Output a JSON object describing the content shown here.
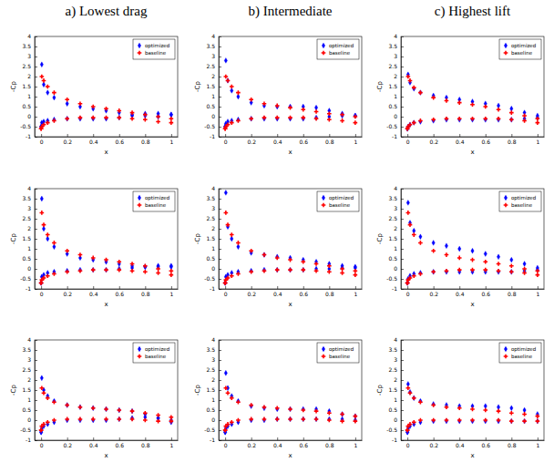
{
  "chart_data": [
    {
      "type": "scatter",
      "title": "a) Lowest drag",
      "x_label": "x",
      "y_label": "-Cp",
      "x": [
        1,
        0.9,
        0.8,
        0.7,
        0.6,
        0.5,
        0.4,
        0.3,
        0.2,
        0.1,
        0.05,
        0.02,
        0.005,
        0,
        0,
        0.005,
        0.02,
        0.05,
        0.1,
        0.2,
        0.3,
        0.4,
        0.5,
        0.6,
        0.7,
        0.8,
        0.9,
        1
      ],
      "series": [
        {
          "name": "optimized",
          "color": "#0000ff",
          "marker": "diamond",
          "values": [
            0.1,
            0.0,
            0.05,
            0.1,
            0.2,
            0.3,
            0.4,
            0.5,
            0.65,
            0.95,
            1.2,
            1.6,
            2.6,
            -0.5,
            -0.5,
            -0.3,
            -0.25,
            -0.2,
            -0.15,
            -0.1,
            -0.1,
            -0.1,
            -0.1,
            -0.05,
            0.05,
            0.15,
            0.15,
            0.1
          ]
        },
        {
          "name": "baseline",
          "color": "#ff0000",
          "marker": "plus",
          "values": [
            -0.1,
            0.0,
            0.1,
            0.2,
            0.3,
            0.4,
            0.5,
            0.65,
            0.85,
            1.2,
            1.5,
            1.8,
            2.0,
            -0.6,
            -0.6,
            -0.5,
            -0.4,
            -0.3,
            -0.2,
            -0.1,
            -0.05,
            -0.05,
            -0.05,
            -0.05,
            -0.1,
            -0.15,
            -0.25,
            -0.3
          ]
        }
      ],
      "xlim": [
        -0.05,
        1.05
      ],
      "xticks": [
        0,
        0.2,
        0.4,
        0.6,
        0.8,
        1
      ],
      "ylim": [
        -1,
        4
      ],
      "yticks": [
        -1,
        -0.5,
        0,
        0.5,
        1,
        1.5,
        2,
        2.5,
        3,
        3.5,
        4
      ],
      "legend": "upper right"
    },
    {
      "type": "scatter",
      "title": "b) Intermediate",
      "x_label": "x",
      "y_label": "-Cp",
      "x": [
        1,
        0.9,
        0.8,
        0.7,
        0.6,
        0.5,
        0.4,
        0.3,
        0.2,
        0.1,
        0.05,
        0.02,
        0.005,
        0,
        0,
        0.005,
        0.02,
        0.05,
        0.1,
        0.2,
        0.3,
        0.4,
        0.5,
        0.6,
        0.7,
        0.8,
        0.9,
        1
      ],
      "series": [
        {
          "name": "optimized",
          "color": "#0000ff",
          "marker": "diamond",
          "values": [
            0.05,
            0.15,
            0.3,
            0.45,
            0.5,
            0.5,
            0.5,
            0.55,
            0.7,
            1.0,
            1.3,
            1.8,
            2.8,
            -0.5,
            -0.5,
            -0.35,
            -0.25,
            -0.2,
            -0.15,
            -0.1,
            -0.1,
            -0.1,
            -0.1,
            -0.1,
            -0.05,
            0.0,
            0.05,
            0.05
          ]
        },
        {
          "name": "baseline",
          "color": "#ff0000",
          "marker": "plus",
          "values": [
            0.0,
            0.1,
            0.15,
            0.25,
            0.35,
            0.45,
            0.55,
            0.65,
            0.85,
            1.2,
            1.5,
            1.8,
            2.0,
            -0.6,
            -0.6,
            -0.5,
            -0.4,
            -0.3,
            -0.2,
            -0.1,
            -0.05,
            -0.05,
            -0.05,
            -0.05,
            -0.1,
            -0.15,
            -0.2,
            -0.3
          ]
        }
      ],
      "xlim": [
        -0.05,
        1.05
      ],
      "xticks": [
        0,
        0.2,
        0.4,
        0.6,
        0.8,
        1
      ],
      "ylim": [
        -1,
        4
      ],
      "yticks": [
        -1,
        -0.5,
        0,
        0.5,
        1,
        1.5,
        2,
        2.5,
        3,
        3.5,
        4
      ],
      "legend": "upper right"
    },
    {
      "type": "scatter",
      "title": "c) Highest lift",
      "x_label": "x",
      "y_label": "-Cp",
      "x": [
        1,
        0.9,
        0.8,
        0.7,
        0.6,
        0.5,
        0.4,
        0.3,
        0.2,
        0.1,
        0.05,
        0.02,
        0.005,
        0,
        0,
        0.005,
        0.02,
        0.05,
        0.1,
        0.2,
        0.3,
        0.4,
        0.5,
        0.6,
        0.7,
        0.8,
        0.9,
        1
      ],
      "series": [
        {
          "name": "optimized",
          "color": "#0000ff",
          "marker": "diamond",
          "values": [
            0.05,
            0.2,
            0.4,
            0.55,
            0.65,
            0.75,
            0.85,
            0.95,
            1.05,
            1.2,
            1.4,
            1.7,
            2.1,
            -0.6,
            -0.6,
            -0.5,
            -0.4,
            -0.3,
            -0.25,
            -0.2,
            -0.15,
            -0.15,
            -0.15,
            -0.15,
            -0.15,
            -0.15,
            -0.1,
            -0.05
          ]
        },
        {
          "name": "baseline",
          "color": "#ff0000",
          "marker": "plus",
          "values": [
            -0.1,
            0.05,
            0.2,
            0.35,
            0.5,
            0.6,
            0.7,
            0.8,
            0.95,
            1.2,
            1.45,
            1.8,
            2.0,
            -0.6,
            -0.6,
            -0.5,
            -0.4,
            -0.3,
            -0.2,
            -0.15,
            -0.1,
            -0.1,
            -0.1,
            -0.1,
            -0.1,
            -0.15,
            -0.2,
            -0.3
          ]
        }
      ],
      "xlim": [
        -0.05,
        1.05
      ],
      "xticks": [
        0,
        0.2,
        0.4,
        0.6,
        0.8,
        1
      ],
      "ylim": [
        -1,
        4
      ],
      "yticks": [
        -1,
        -0.5,
        0,
        0.5,
        1,
        1.5,
        2,
        2.5,
        3,
        3.5,
        4
      ],
      "legend": "upper right"
    },
    {
      "type": "scatter",
      "x_label": "x",
      "y_label": "-Cp",
      "x": [
        1,
        0.9,
        0.8,
        0.7,
        0.6,
        0.5,
        0.4,
        0.3,
        0.2,
        0.1,
        0.05,
        0.02,
        0.005,
        0,
        0,
        0.005,
        0.02,
        0.05,
        0.1,
        0.2,
        0.3,
        0.4,
        0.5,
        0.6,
        0.7,
        0.8,
        0.9,
        1
      ],
      "series": [
        {
          "name": "optimized",
          "color": "#0000ff",
          "marker": "diamond",
          "values": [
            0.15,
            0.1,
            0.1,
            0.15,
            0.25,
            0.35,
            0.45,
            0.55,
            0.75,
            1.1,
            1.5,
            2.0,
            3.5,
            -0.7,
            -0.7,
            -0.4,
            -0.3,
            -0.2,
            -0.15,
            -0.1,
            -0.05,
            -0.05,
            -0.05,
            0.0,
            0.05,
            0.1,
            0.15,
            0.1
          ]
        },
        {
          "name": "baseline",
          "color": "#ff0000",
          "marker": "plus",
          "values": [
            -0.1,
            0.0,
            0.15,
            0.25,
            0.35,
            0.45,
            0.55,
            0.7,
            0.9,
            1.3,
            1.7,
            2.2,
            2.8,
            -0.7,
            -0.7,
            -0.55,
            -0.45,
            -0.35,
            -0.25,
            -0.15,
            -0.1,
            -0.05,
            -0.05,
            -0.05,
            -0.1,
            -0.15,
            -0.2,
            -0.3
          ]
        }
      ],
      "xlim": [
        -0.05,
        1.05
      ],
      "xticks": [
        0,
        0.2,
        0.4,
        0.6,
        0.8,
        1
      ],
      "ylim": [
        -1,
        4
      ],
      "yticks": [
        -1,
        -0.5,
        0,
        0.5,
        1,
        1.5,
        2,
        2.5,
        3,
        3.5,
        4
      ],
      "legend": "upper right"
    },
    {
      "type": "scatter",
      "x_label": "x",
      "y_label": "-Cp",
      "x": [
        1,
        0.9,
        0.8,
        0.7,
        0.6,
        0.5,
        0.4,
        0.3,
        0.2,
        0.1,
        0.05,
        0.02,
        0.005,
        0,
        0,
        0.005,
        0.02,
        0.05,
        0.1,
        0.2,
        0.3,
        0.4,
        0.5,
        0.6,
        0.7,
        0.8,
        0.9,
        1
      ],
      "series": [
        {
          "name": "optimized",
          "color": "#0000ff",
          "marker": "diamond",
          "values": [
            0.1,
            0.15,
            0.25,
            0.35,
            0.45,
            0.55,
            0.6,
            0.7,
            0.8,
            1.1,
            1.5,
            2.1,
            3.8,
            -0.7,
            -0.7,
            -0.4,
            -0.3,
            -0.2,
            -0.15,
            -0.1,
            -0.05,
            -0.05,
            -0.05,
            -0.05,
            0.0,
            0.0,
            0.05,
            0.05
          ]
        },
        {
          "name": "baseline",
          "color": "#ff0000",
          "marker": "plus",
          "values": [
            -0.1,
            0.0,
            0.15,
            0.25,
            0.35,
            0.45,
            0.55,
            0.7,
            0.9,
            1.3,
            1.7,
            2.2,
            2.8,
            -0.7,
            -0.7,
            -0.55,
            -0.45,
            -0.35,
            -0.25,
            -0.15,
            -0.1,
            -0.05,
            -0.05,
            -0.05,
            -0.1,
            -0.15,
            -0.2,
            -0.3
          ]
        }
      ],
      "xlim": [
        -0.05,
        1.05
      ],
      "xticks": [
        0,
        0.2,
        0.4,
        0.6,
        0.8,
        1
      ],
      "ylim": [
        -1,
        4
      ],
      "yticks": [
        -1,
        -0.5,
        0,
        0.5,
        1,
        1.5,
        2,
        2.5,
        3,
        3.5,
        4
      ],
      "legend": "upper right"
    },
    {
      "type": "scatter",
      "x_label": "x",
      "y_label": "-Cp",
      "x": [
        1,
        0.9,
        0.8,
        0.7,
        0.6,
        0.5,
        0.4,
        0.3,
        0.2,
        0.1,
        0.05,
        0.02,
        0.005,
        0,
        0,
        0.005,
        0.02,
        0.05,
        0.1,
        0.2,
        0.3,
        0.4,
        0.5,
        0.6,
        0.7,
        0.8,
        0.9,
        1
      ],
      "series": [
        {
          "name": "optimized",
          "color": "#0000ff",
          "marker": "diamond",
          "values": [
            0.05,
            0.25,
            0.45,
            0.6,
            0.75,
            0.9,
            1.0,
            1.15,
            1.3,
            1.6,
            1.9,
            2.3,
            3.3,
            -0.7,
            -0.7,
            -0.5,
            -0.35,
            -0.25,
            -0.2,
            -0.15,
            -0.15,
            -0.15,
            -0.15,
            -0.15,
            -0.15,
            -0.15,
            -0.1,
            -0.05
          ]
        },
        {
          "name": "baseline",
          "color": "#ff0000",
          "marker": "plus",
          "values": [
            -0.1,
            0.0,
            0.15,
            0.25,
            0.35,
            0.45,
            0.55,
            0.7,
            0.9,
            1.3,
            1.7,
            2.2,
            2.8,
            -0.7,
            -0.7,
            -0.55,
            -0.45,
            -0.35,
            -0.25,
            -0.15,
            -0.1,
            -0.05,
            -0.05,
            -0.05,
            -0.1,
            -0.15,
            -0.2,
            -0.3
          ]
        }
      ],
      "xlim": [
        -0.05,
        1.05
      ],
      "xticks": [
        0,
        0.2,
        0.4,
        0.6,
        0.8,
        1
      ],
      "ylim": [
        -1,
        4
      ],
      "yticks": [
        -1,
        -0.5,
        0,
        0.5,
        1,
        1.5,
        2,
        2.5,
        3,
        3.5,
        4
      ],
      "legend": "upper right"
    },
    {
      "type": "scatter",
      "x_label": "x",
      "y_label": "-Cp",
      "x": [
        1,
        0.9,
        0.8,
        0.7,
        0.6,
        0.5,
        0.4,
        0.3,
        0.2,
        0.1,
        0.05,
        0.02,
        0.005,
        0,
        0,
        0.005,
        0.02,
        0.05,
        0.1,
        0.2,
        0.3,
        0.4,
        0.5,
        0.6,
        0.7,
        0.8,
        0.9,
        1
      ],
      "series": [
        {
          "name": "optimized",
          "color": "#0000ff",
          "marker": "diamond",
          "values": [
            -0.1,
            0.1,
            0.3,
            0.45,
            0.5,
            0.55,
            0.6,
            0.65,
            0.75,
            0.95,
            1.2,
            1.5,
            2.1,
            -0.6,
            -0.6,
            -0.4,
            -0.3,
            -0.2,
            -0.1,
            0.0,
            0.0,
            0.0,
            0.0,
            0.05,
            0.1,
            0.15,
            0.1,
            0.0
          ]
        },
        {
          "name": "baseline",
          "color": "#ff0000",
          "marker": "plus",
          "values": [
            0.15,
            0.25,
            0.35,
            0.45,
            0.5,
            0.55,
            0.6,
            0.65,
            0.75,
            0.9,
            1.1,
            1.35,
            1.6,
            -0.5,
            -0.5,
            -0.3,
            -0.2,
            -0.1,
            0.0,
            0.05,
            0.05,
            0.05,
            0.05,
            0.05,
            0.05,
            0.0,
            -0.05,
            -0.05
          ]
        }
      ],
      "xlim": [
        -0.05,
        1.05
      ],
      "xticks": [
        0,
        0.2,
        0.4,
        0.6,
        0.8,
        1
      ],
      "ylim": [
        -1,
        4
      ],
      "yticks": [
        -1,
        -0.5,
        0,
        0.5,
        1,
        1.5,
        2,
        2.5,
        3,
        3.5,
        4
      ],
      "legend": "upper right"
    },
    {
      "type": "scatter",
      "x_label": "x",
      "y_label": "-Cp",
      "x": [
        1,
        0.9,
        0.8,
        0.7,
        0.6,
        0.5,
        0.4,
        0.3,
        0.2,
        0.1,
        0.05,
        0.02,
        0.005,
        0,
        0,
        0.005,
        0.02,
        0.05,
        0.1,
        0.2,
        0.3,
        0.4,
        0.5,
        0.6,
        0.7,
        0.8,
        0.9,
        1
      ],
      "series": [
        {
          "name": "optimized",
          "color": "#0000ff",
          "marker": "diamond",
          "values": [
            0.2,
            0.3,
            0.45,
            0.55,
            0.55,
            0.55,
            0.55,
            0.6,
            0.7,
            0.95,
            1.2,
            1.6,
            2.35,
            -0.6,
            -0.6,
            -0.4,
            -0.3,
            -0.2,
            -0.1,
            0.0,
            0.0,
            0.05,
            0.05,
            0.05,
            0.05,
            0.05,
            0.05,
            0.0
          ]
        },
        {
          "name": "baseline",
          "color": "#ff0000",
          "marker": "plus",
          "values": [
            0.2,
            0.3,
            0.35,
            0.45,
            0.5,
            0.55,
            0.6,
            0.65,
            0.75,
            0.9,
            1.1,
            1.35,
            1.6,
            -0.5,
            -0.5,
            -0.3,
            -0.2,
            -0.1,
            0.0,
            0.05,
            0.05,
            0.05,
            0.05,
            0.05,
            0.05,
            0.0,
            -0.05,
            -0.05
          ]
        }
      ],
      "xlim": [
        -0.05,
        1.05
      ],
      "xticks": [
        0,
        0.2,
        0.4,
        0.6,
        0.8,
        1
      ],
      "ylim": [
        -1,
        4
      ],
      "yticks": [
        -1,
        -0.5,
        0,
        0.5,
        1,
        1.5,
        2,
        2.5,
        3,
        3.5,
        4
      ],
      "legend": "upper right"
    },
    {
      "type": "scatter",
      "x_label": "x",
      "y_label": "-Cp",
      "x": [
        1,
        0.9,
        0.8,
        0.7,
        0.6,
        0.5,
        0.4,
        0.3,
        0.2,
        0.1,
        0.05,
        0.02,
        0.005,
        0,
        0,
        0.005,
        0.02,
        0.05,
        0.1,
        0.2,
        0.3,
        0.4,
        0.5,
        0.6,
        0.7,
        0.8,
        0.9,
        1
      ],
      "series": [
        {
          "name": "optimized",
          "color": "#0000ff",
          "marker": "diamond",
          "values": [
            0.3,
            0.5,
            0.6,
            0.65,
            0.7,
            0.7,
            0.7,
            0.75,
            0.8,
            0.95,
            1.1,
            1.4,
            1.8,
            -0.6,
            -0.6,
            -0.4,
            -0.3,
            -0.2,
            -0.1,
            -0.05,
            -0.05,
            -0.05,
            -0.05,
            -0.05,
            -0.05,
            -0.05,
            -0.05,
            -0.05
          ]
        },
        {
          "name": "baseline",
          "color": "#ff0000",
          "marker": "plus",
          "values": [
            0.2,
            0.3,
            0.35,
            0.45,
            0.5,
            0.55,
            0.6,
            0.65,
            0.75,
            0.9,
            1.1,
            1.35,
            1.6,
            -0.5,
            -0.5,
            -0.3,
            -0.2,
            -0.1,
            0.0,
            0.0,
            0.0,
            0.0,
            0.0,
            0.0,
            0.0,
            -0.05,
            -0.05,
            -0.05
          ]
        }
      ],
      "xlim": [
        -0.05,
        1.05
      ],
      "xticks": [
        0,
        0.2,
        0.4,
        0.6,
        0.8,
        1
      ],
      "ylim": [
        -1,
        4
      ],
      "yticks": [
        -1,
        -0.5,
        0,
        0.5,
        1,
        1.5,
        2,
        2.5,
        3,
        3.5,
        4
      ],
      "legend": "upper right"
    }
  ]
}
